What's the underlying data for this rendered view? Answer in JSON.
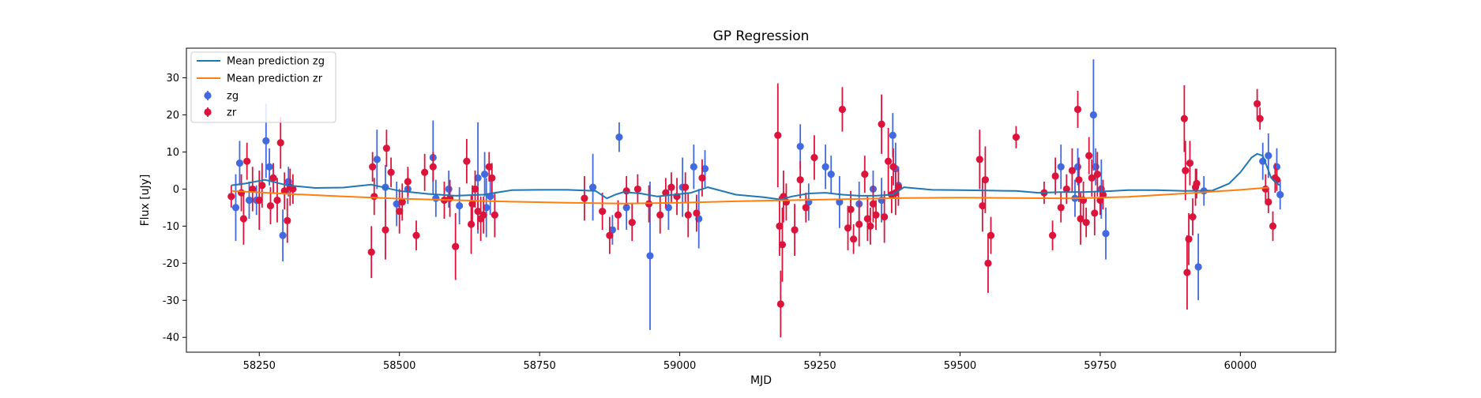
{
  "chart_data": {
    "type": "scatter",
    "title": "GP Regression",
    "xlabel": "MJD",
    "ylabel": "Flux [uJy]",
    "xlim": [
      58120,
      60170
    ],
    "ylim": [
      -44,
      38
    ],
    "x_ticks": [
      58250,
      58500,
      58750,
      59000,
      59250,
      59500,
      59750,
      60000
    ],
    "y_ticks": [
      -40,
      -30,
      -20,
      -10,
      0,
      10,
      20,
      30
    ],
    "grid": false,
    "legend_position": "upper-left",
    "colors": {
      "zg_points": "#4169e1",
      "zr_points": "#dc143c",
      "zg_mean": "#1f77b4",
      "zr_mean": "#ff7f0e"
    },
    "legend": [
      {
        "label": "Mean prediction zg",
        "kind": "line",
        "color": "#1f77b4"
      },
      {
        "label": "Mean prediction zr",
        "kind": "line",
        "color": "#ff7f0e"
      },
      {
        "label": "zg",
        "kind": "errorbar",
        "color": "#4169e1"
      },
      {
        "label": "zr",
        "kind": "errorbar",
        "color": "#dc143c"
      }
    ],
    "series": [
      {
        "name": "Mean prediction zg",
        "kind": "line",
        "x": [
          58200,
          58225,
          58260,
          58300,
          58350,
          58400,
          58450,
          58500,
          58550,
          58600,
          58650,
          58700,
          58750,
          58800,
          58850,
          58870,
          58885,
          58900,
          58930,
          58960,
          58990,
          59020,
          59050,
          59100,
          59150,
          59180,
          59200,
          59230,
          59260,
          59290,
          59320,
          59350,
          59380,
          59400,
          59450,
          59500,
          59550,
          59600,
          59640,
          59680,
          59720,
          59760,
          59800,
          59850,
          59900,
          59950,
          59980,
          60000,
          60020,
          60030,
          60040,
          60055,
          60070
        ],
        "y": [
          1,
          1.5,
          2.5,
          1,
          0.3,
          0.4,
          1.2,
          -0.5,
          -1.3,
          -1.8,
          -1.5,
          -0.3,
          -0.2,
          -0.2,
          -0.5,
          -2.5,
          -1.5,
          -0.8,
          -1.2,
          -2,
          -1.5,
          -1,
          0.5,
          -1.5,
          -2.2,
          -2.8,
          -2,
          -1.2,
          -1,
          -1.5,
          -1.8,
          -1.8,
          -1.5,
          0.5,
          -0.2,
          -0.3,
          -0.4,
          -0.5,
          -1,
          -0.8,
          -0.8,
          -0.6,
          -0.3,
          -0.3,
          -0.5,
          -0.4,
          1.5,
          4.5,
          8.5,
          9.5,
          9,
          3,
          1
        ]
      },
      {
        "name": "Mean prediction zr",
        "kind": "line",
        "x": [
          58200,
          58300,
          58400,
          58500,
          58600,
          58700,
          58800,
          58900,
          59000,
          59100,
          59200,
          59300,
          59400,
          59500,
          59600,
          59700,
          59800,
          59900,
          60000,
          60050
        ],
        "y": [
          -0.5,
          -1.3,
          -2,
          -2.6,
          -3,
          -3.4,
          -3.7,
          -3.9,
          -3.7,
          -3.3,
          -3,
          -2.7,
          -2.4,
          -2.3,
          -2.4,
          -2.5,
          -2.1,
          -1.2,
          -0.2,
          0.4
        ]
      },
      {
        "name": "zg",
        "kind": "errorbar",
        "x": [
          58208,
          58215,
          58232,
          58245,
          58262,
          58268,
          58292,
          58302,
          58460,
          58475,
          58495,
          58515,
          58560,
          58565,
          58588,
          58607,
          58640,
          58652,
          58655,
          58662,
          58845,
          58880,
          58892,
          58905,
          58947,
          58980,
          59005,
          59025,
          59034,
          59045,
          59215,
          59230,
          59260,
          59270,
          59285,
          59320,
          59345,
          59360,
          59380,
          59385,
          59390,
          59680,
          59705,
          59710,
          59738,
          59742,
          59752,
          59760,
          59925,
          59935,
          60040,
          60050,
          60065,
          60071
        ],
        "y": [
          -5,
          7,
          -3,
          -3,
          13,
          6,
          -12.5,
          2,
          8,
          0.5,
          -4,
          0,
          8.5,
          -2.5,
          0,
          -4.5,
          3,
          4,
          -5,
          -2,
          0.5,
          -11,
          14,
          -5,
          -18,
          -5,
          0.5,
          6,
          -8,
          5.5,
          11.5,
          -3.5,
          6,
          4,
          -3.5,
          -4,
          0,
          -3,
          14.5,
          5.5,
          1,
          6,
          -2.5,
          6,
          20,
          6,
          0,
          -12,
          -21,
          -0.5,
          7.5,
          9,
          6,
          -1.5
        ],
        "err": [
          9,
          6,
          5,
          4,
          10,
          5,
          7,
          4,
          8,
          6,
          6,
          4,
          10,
          5,
          5,
          5,
          15,
          6,
          8,
          5,
          9,
          4,
          4,
          6,
          20,
          6,
          8,
          6,
          8,
          5,
          6,
          5,
          6,
          5,
          7,
          6,
          5,
          6,
          6,
          7,
          5,
          6,
          5,
          5,
          15,
          5,
          8,
          7,
          9,
          4,
          5,
          6,
          5,
          4
        ]
      },
      {
        "name": "zr",
        "kind": "errorbar",
        "x": [
          58200,
          58218,
          58222,
          58228,
          58238,
          58250,
          58255,
          58270,
          58275,
          58282,
          58288,
          58295,
          58300,
          58305,
          58310,
          58450,
          58452,
          58455,
          58475,
          58477,
          58485,
          58500,
          58505,
          58515,
          58530,
          58545,
          58560,
          58580,
          58590,
          58600,
          58620,
          58628,
          58630,
          58635,
          58640,
          58645,
          58650,
          58660,
          58665,
          58670,
          58830,
          58862,
          58875,
          58890,
          58905,
          58915,
          58925,
          58945,
          58965,
          58975,
          58985,
          58995,
          59010,
          59015,
          59030,
          59040,
          59175,
          59178,
          59180,
          59183,
          59185,
          59190,
          59205,
          59215,
          59225,
          59240,
          59290,
          59300,
          59305,
          59310,
          59320,
          59330,
          59335,
          59340,
          59345,
          59350,
          59360,
          59365,
          59372,
          59378,
          59381,
          59385,
          59390,
          59535,
          59540,
          59545,
          59550,
          59555,
          59600,
          59650,
          59665,
          59670,
          59680,
          59690,
          59700,
          59710,
          59712,
          59715,
          59720,
          59725,
          59730,
          59735,
          59740,
          59745,
          59750,
          59755,
          59900,
          59902,
          59905,
          59908,
          59910,
          59915,
          59920,
          59922,
          60030,
          60035,
          60045,
          60050,
          60058,
          60062,
          60065
        ],
        "y": [
          -2,
          -1,
          -8,
          7.5,
          0,
          -3,
          1,
          -4.5,
          3,
          -3,
          12.5,
          -0.5,
          -8.5,
          0.5,
          0,
          -17,
          6,
          -2,
          -11,
          11,
          4.5,
          -6,
          -3.5,
          2,
          -12.5,
          4.5,
          6,
          -3,
          -2.5,
          -15.5,
          7.5,
          -9.5,
          -4,
          0,
          -6,
          -8,
          -7,
          6,
          3,
          -7,
          -2.5,
          -6,
          -12.5,
          -7,
          -0.5,
          -9,
          0,
          -4,
          -7,
          -1,
          0.5,
          -2,
          0.5,
          -7,
          -6.5,
          3,
          14.5,
          -10,
          -31,
          -15,
          -2,
          -3.5,
          -11,
          2.5,
          -5,
          8.5,
          21.5,
          -10.5,
          -5.5,
          -13.5,
          -9.5,
          4,
          -8,
          -10,
          -4,
          -7,
          17.5,
          -7.5,
          7.5,
          -1.5,
          6,
          -1,
          0.5,
          8,
          -4.5,
          2.5,
          -20,
          -12.5,
          14,
          -1,
          -12.5,
          3.5,
          -5,
          0,
          5,
          21.5,
          2.5,
          -8,
          -3,
          -9,
          9,
          3,
          -6.5,
          4,
          -3,
          -1.5,
          19,
          5,
          -22.5,
          -13.5,
          7,
          -7.5,
          0.5,
          1.5,
          23,
          19,
          0,
          -3.5,
          -10,
          3,
          2.5
        ],
        "err": [
          3,
          5,
          7,
          5,
          6,
          8,
          6,
          5,
          4,
          6,
          7,
          5,
          6,
          5,
          4,
          7,
          4,
          5,
          8,
          5,
          4,
          6,
          5,
          4,
          4,
          5,
          4,
          5,
          5,
          9,
          6,
          8,
          5,
          5,
          5,
          6,
          5,
          4,
          4,
          6,
          6,
          5,
          5,
          4,
          4,
          5,
          4,
          5,
          5,
          4,
          4,
          5,
          4,
          6,
          5,
          5,
          14,
          8,
          9,
          10,
          7,
          5,
          7,
          5,
          4,
          6,
          6,
          6,
          5,
          4,
          6,
          5,
          6,
          5,
          5,
          4,
          8,
          7,
          9,
          5,
          5,
          6,
          5,
          8,
          7,
          9,
          8,
          5,
          3,
          3,
          4,
          5,
          4,
          4,
          6,
          5,
          6,
          7,
          5,
          4,
          5,
          5,
          6,
          6,
          4,
          4,
          9,
          8,
          10,
          7,
          6,
          5,
          5,
          4,
          4,
          3,
          4,
          3,
          4,
          4,
          3
        ]
      }
    ]
  }
}
